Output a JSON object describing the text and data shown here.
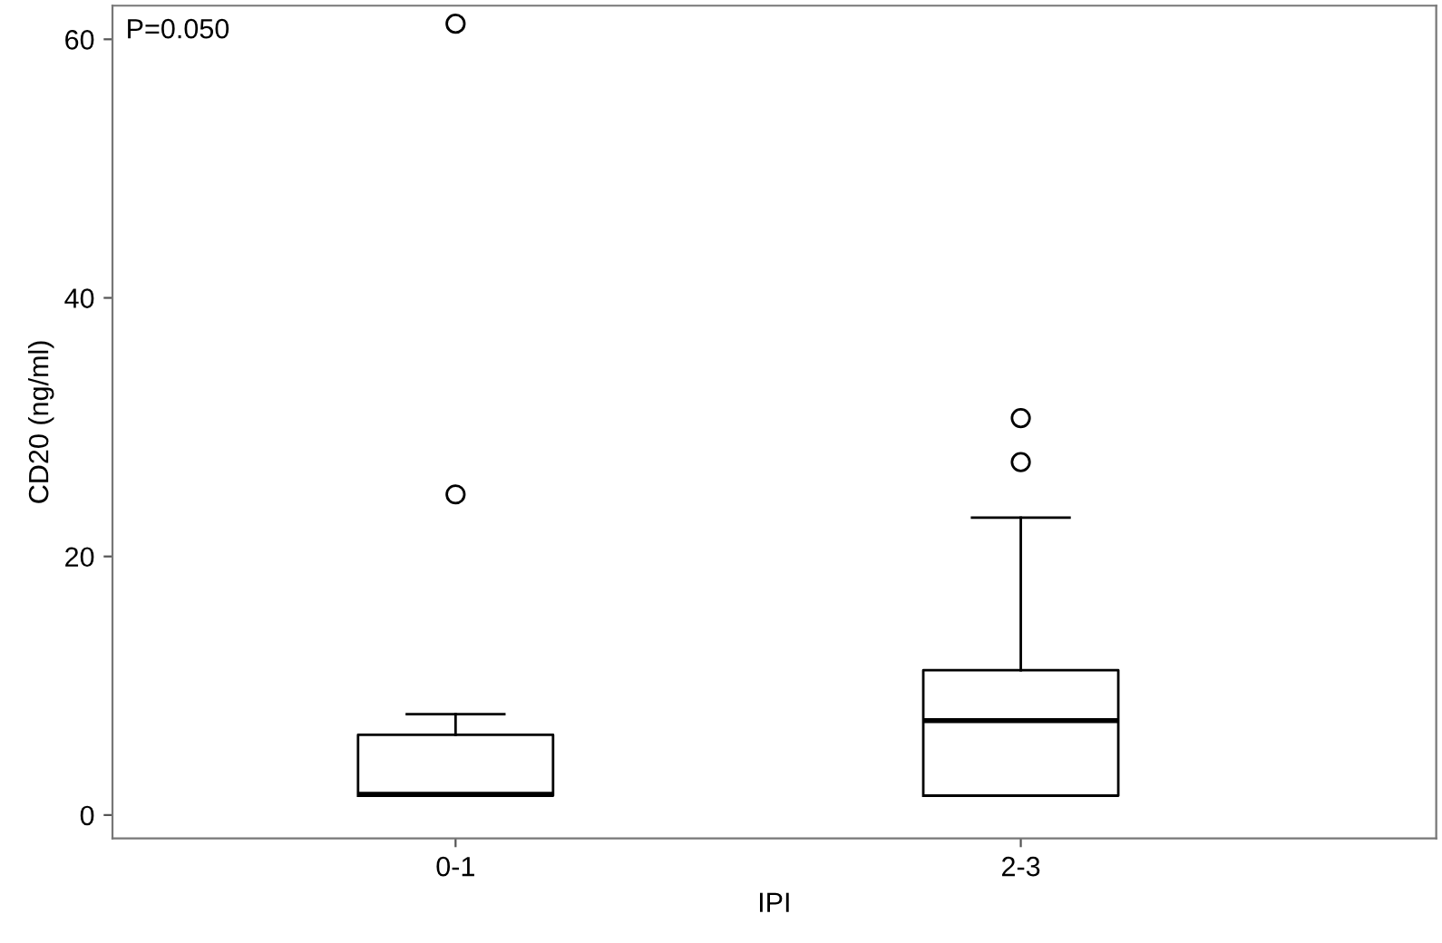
{
  "chart_data": {
    "type": "box",
    "xlabel": "IPI",
    "ylabel": "CD20 (ng/ml)",
    "categories": [
      "0-1",
      "2-3"
    ],
    "boxes": [
      {
        "low": 1.5,
        "q1": 1.5,
        "median": 1.6,
        "q3": 6.2,
        "high": 7.8,
        "outliers": [
          24.8,
          61.2
        ]
      },
      {
        "low": 1.5,
        "q1": 1.5,
        "median": 7.3,
        "q3": 11.2,
        "high": 23,
        "outliers": [
          27.3,
          30.7
        ]
      }
    ],
    "ylim": [
      -1.8,
      62.6
    ],
    "yticks": [
      0,
      20,
      40,
      60
    ],
    "grid": false,
    "annotations": [
      "P=0.050"
    ]
  }
}
